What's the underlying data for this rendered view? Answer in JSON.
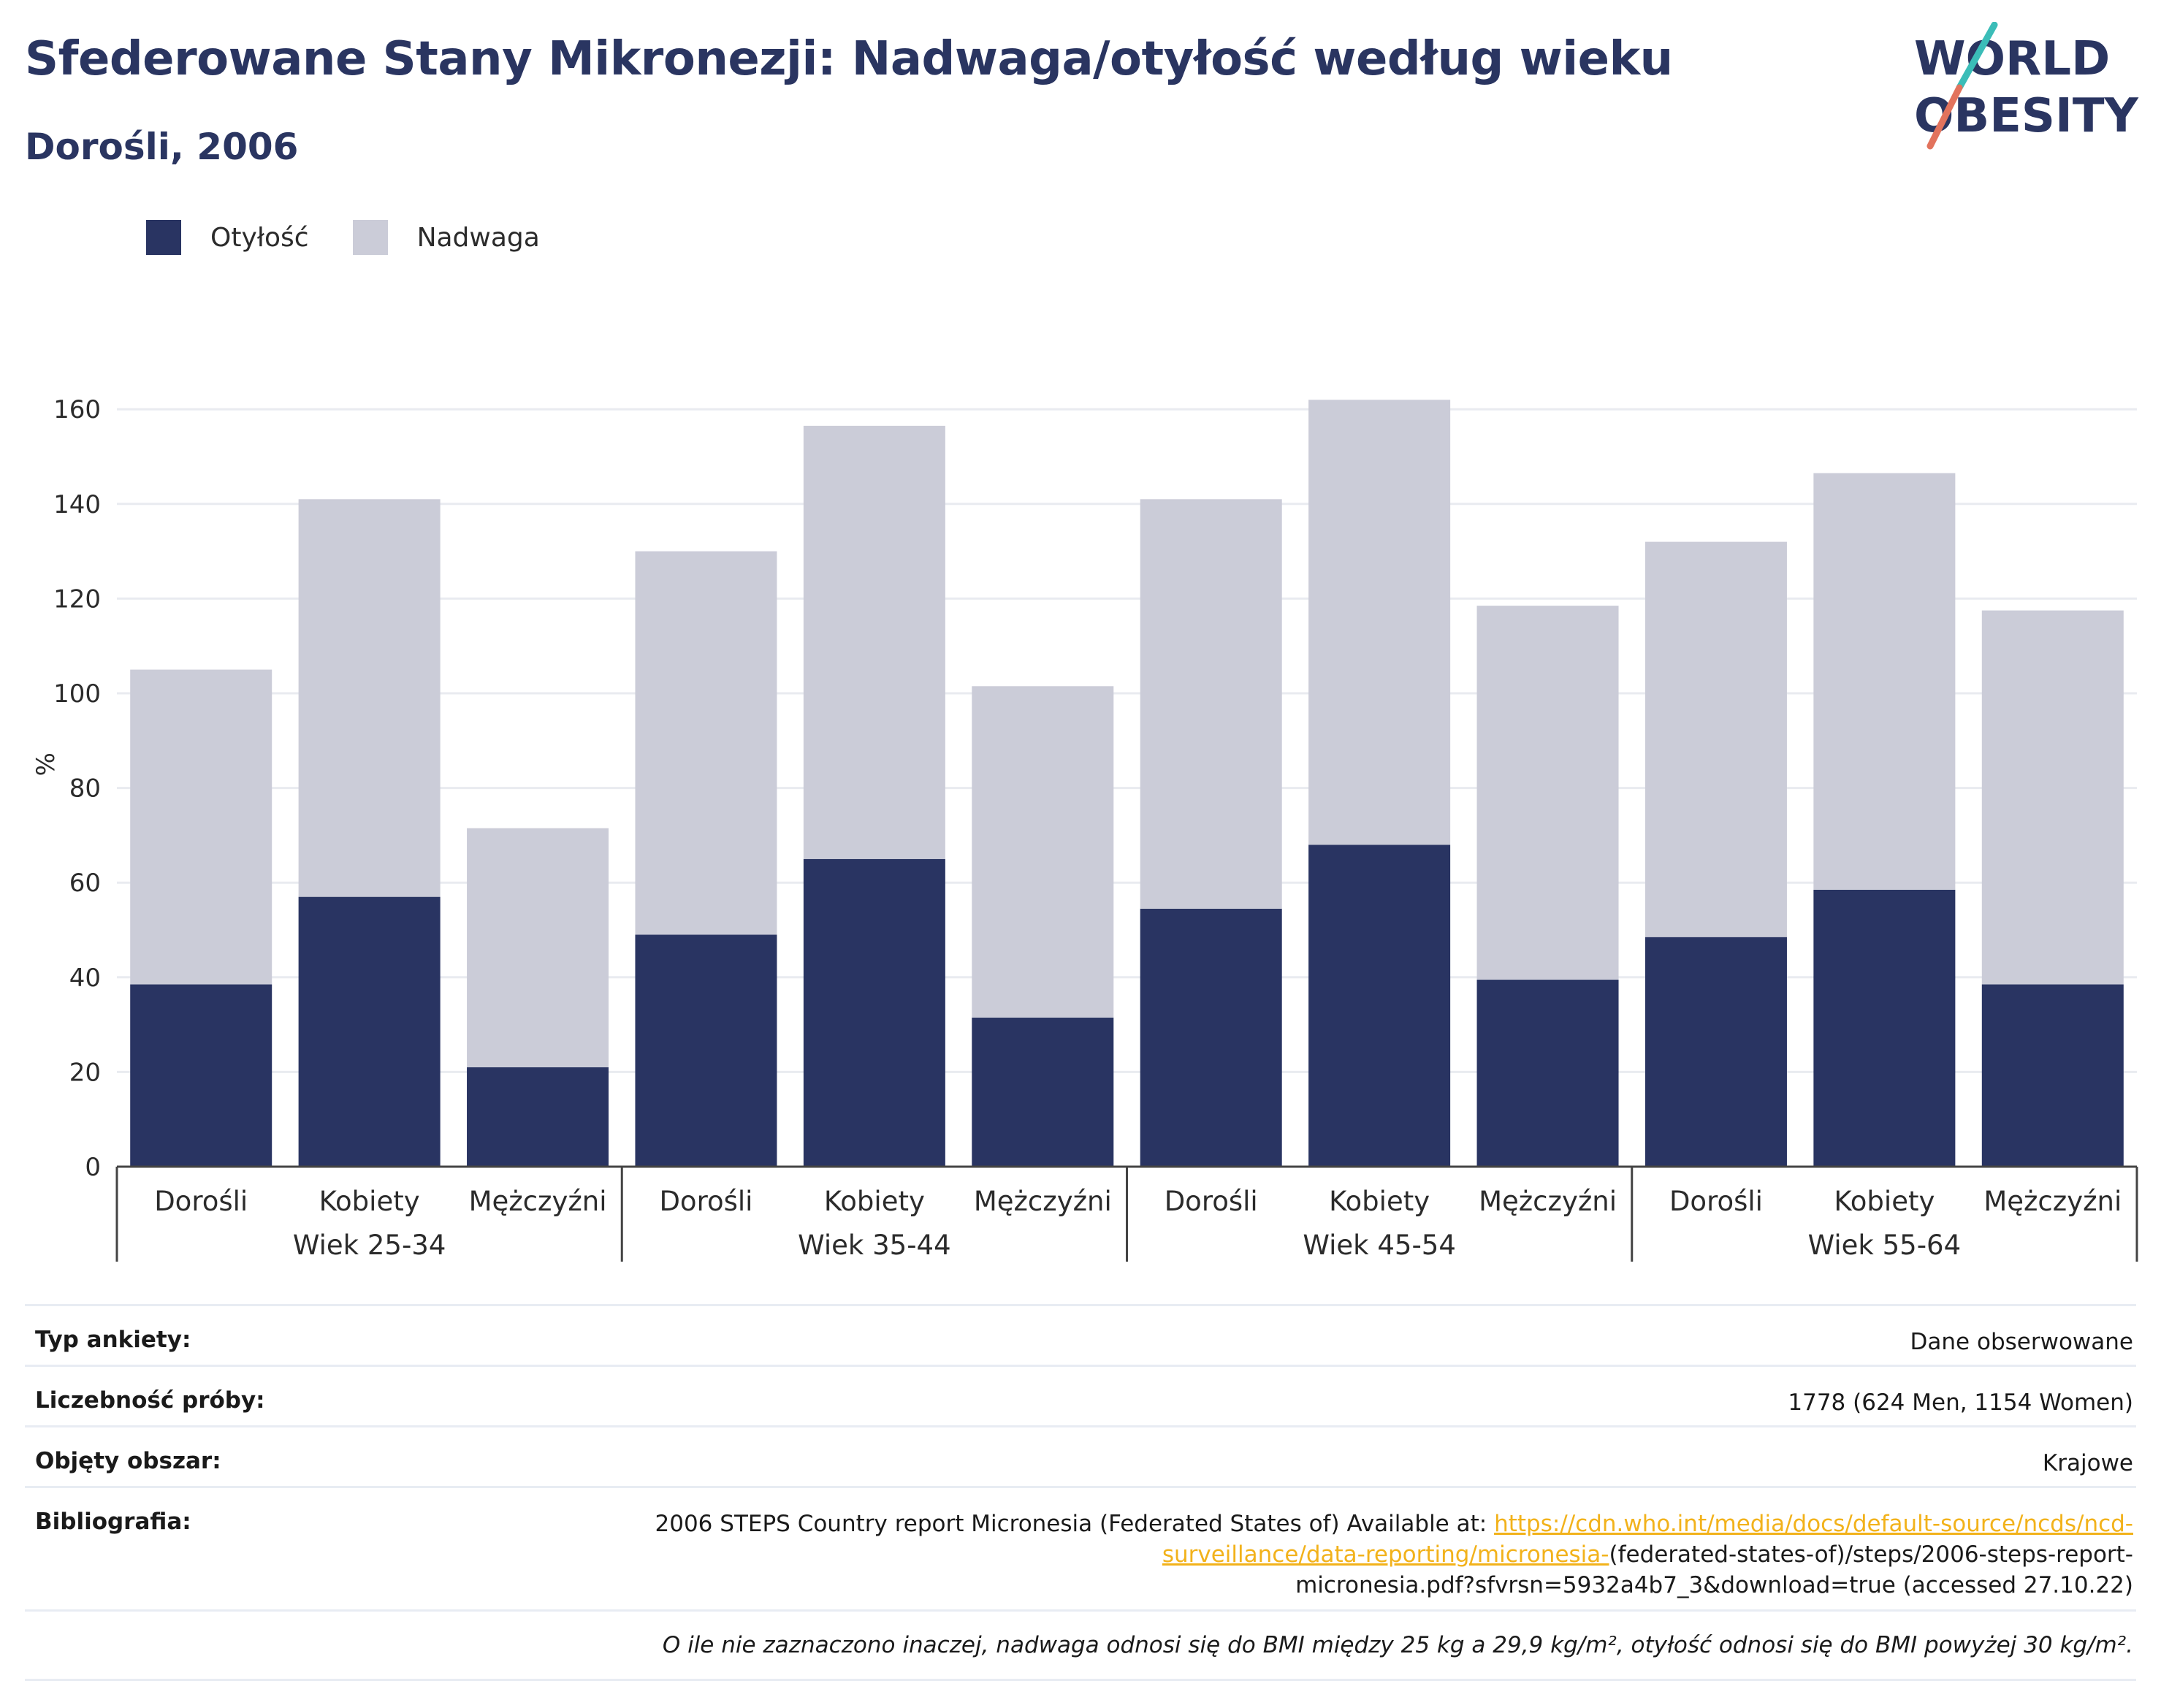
{
  "header": {
    "title": "Sfederowane Stany Mikronezji: Nadwaga/otyłość według wieku",
    "subtitle": "Dorośli, 2006"
  },
  "logo": {
    "line1": "WORLD",
    "line2": "OBESITY"
  },
  "legend": [
    {
      "label": "Otyłość",
      "color": "#293462"
    },
    {
      "label": "Nadwaga",
      "color": "#cbccd8"
    }
  ],
  "chart_data": {
    "type": "bar",
    "stacked": true,
    "ylabel": "%",
    "ylim": [
      0,
      170
    ],
    "yticks": [
      0,
      20,
      40,
      60,
      80,
      100,
      120,
      140,
      160
    ],
    "groups": [
      "Wiek 25-34",
      "Wiek 35-44",
      "Wiek 45-54",
      "Wiek 55-64"
    ],
    "subcategories": [
      "Dorośli",
      "Kobiety",
      "Mężczyźni"
    ],
    "series": [
      {
        "name": "Otyłość",
        "color": "#293462",
        "values": [
          38.5,
          57,
          21,
          49,
          65,
          31.5,
          54.5,
          68,
          39.5,
          48.5,
          58.5,
          38.5
        ]
      },
      {
        "name": "Nadwaga",
        "color": "#cbccd8",
        "values": [
          66.5,
          84,
          50.5,
          81,
          91.5,
          70,
          86.5,
          94,
          79,
          83.5,
          88,
          79
        ]
      }
    ],
    "grid": true,
    "legend_position": "top-left"
  },
  "info": {
    "survey_type": {
      "label": "Typ ankiety:",
      "value": "Dane obserwowane"
    },
    "sample_size": {
      "label": "Liczebność próby:",
      "value": "1778 (624 Men, 1154 Women)"
    },
    "area": {
      "label": "Objęty obszar:",
      "value": "Krajowe"
    },
    "bibliography": {
      "label": "Bibliografia:",
      "prefix": "2006 STEPS Country report Micronesia (Federated States of) Available at: ",
      "link_1": "https://cdn.who.int/media/docs/default-source/ncds/ncd-",
      "link_2": "surveillance/data-reporting/micronesia-",
      "suffix_1": "(federated-states-of)/steps/2006-steps-report-",
      "suffix_2": "micronesia.pdf?sfvrsn=5932a4b7_3&download=true (accessed 27.10.22)"
    },
    "note": "O ile nie zaznaczono inaczej, nadwaga odnosi się do BMI między 25 kg a 29,9 kg/m², otyłość odnosi się do BMI powyżej 30 kg/m²."
  }
}
